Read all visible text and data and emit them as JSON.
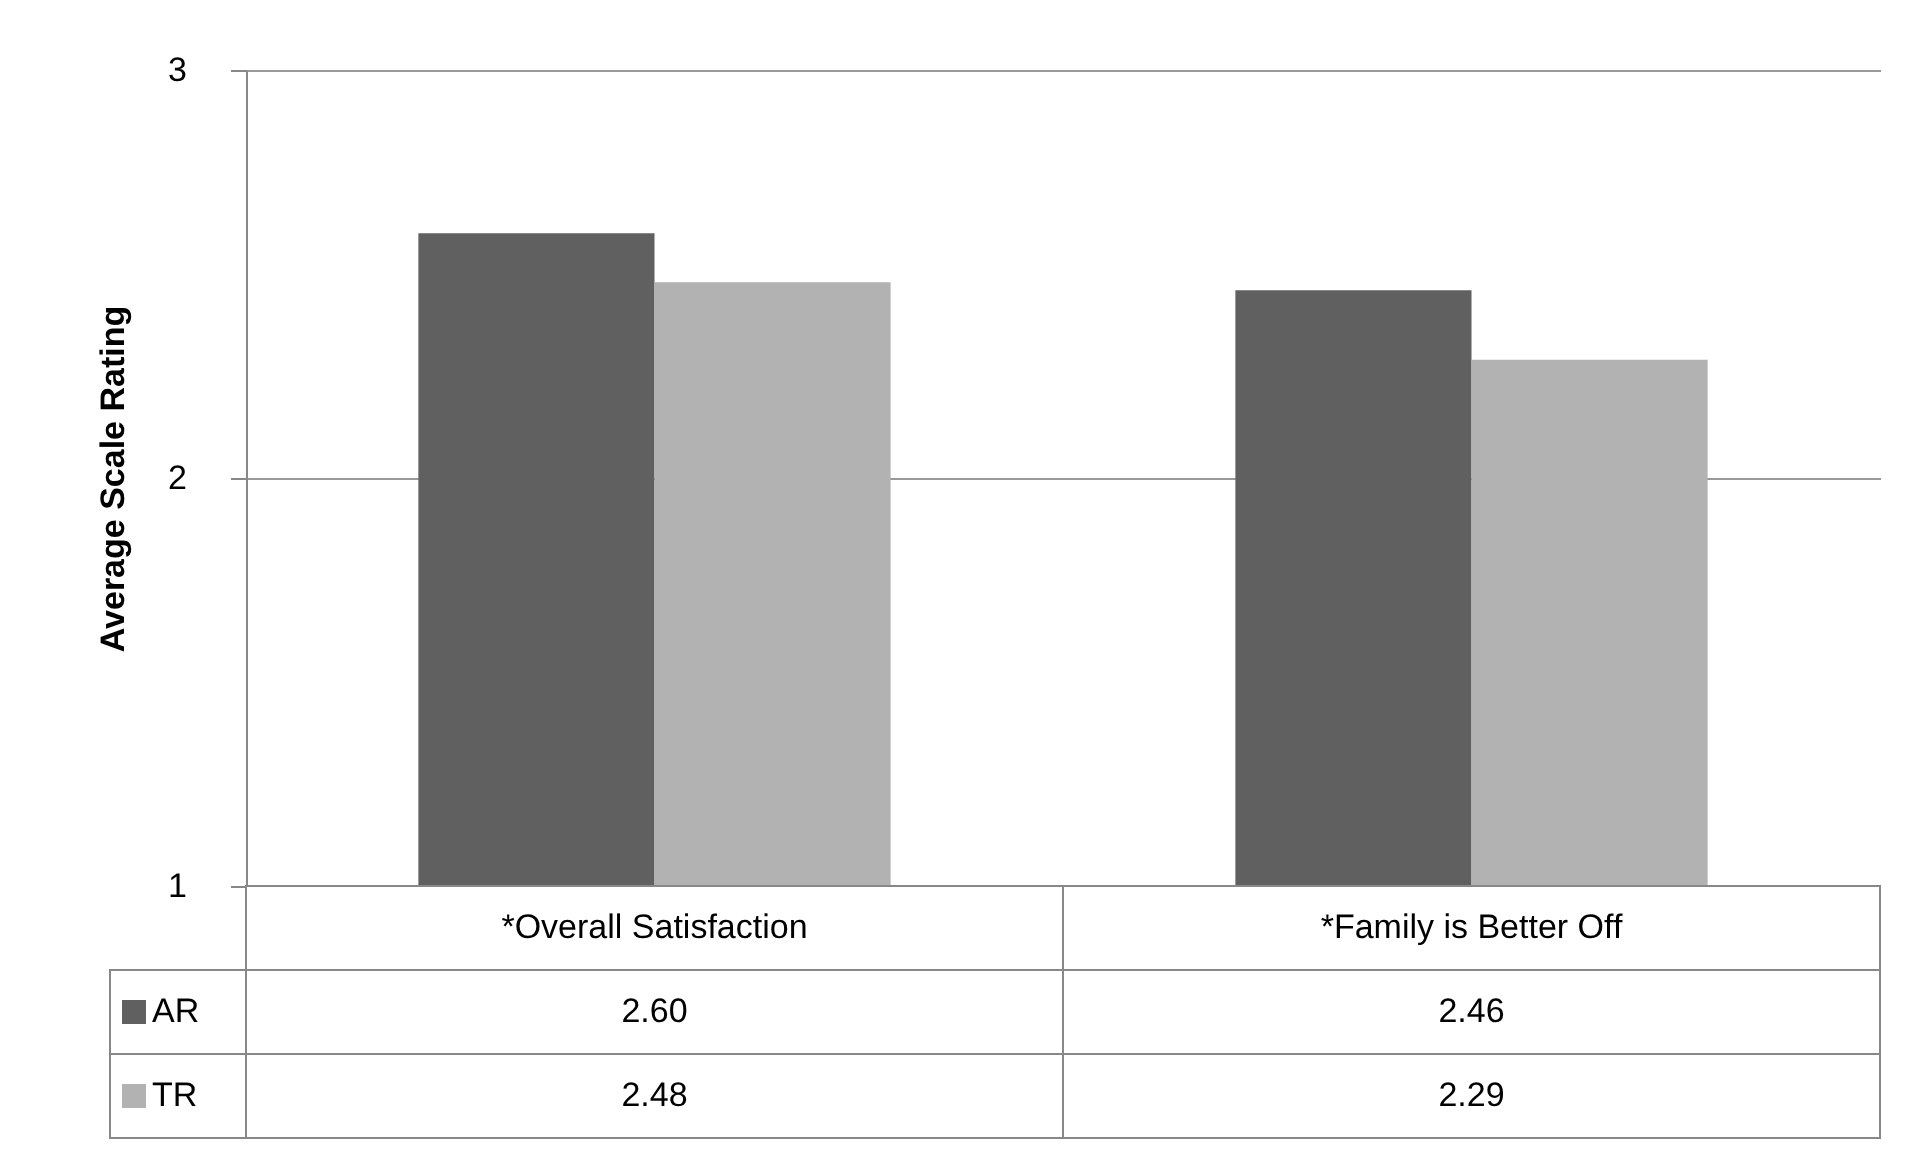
{
  "chart_data": {
    "type": "bar",
    "ylabel": "Average Scale Rating",
    "categories": [
      "*Overall Satisfaction",
      "*Family is Better Off"
    ],
    "series": [
      {
        "name": "AR",
        "color": "#606060",
        "values": [
          2.6,
          2.46
        ],
        "value_labels": [
          "2.60",
          "2.46"
        ]
      },
      {
        "name": "TR",
        "color": "#b2b2b2",
        "values": [
          2.48,
          2.29
        ],
        "value_labels": [
          "2.48",
          "2.29"
        ]
      }
    ],
    "ylim": [
      1,
      3
    ],
    "yticks": [
      1,
      2,
      3
    ],
    "grid": "y",
    "legend": "bottom"
  }
}
